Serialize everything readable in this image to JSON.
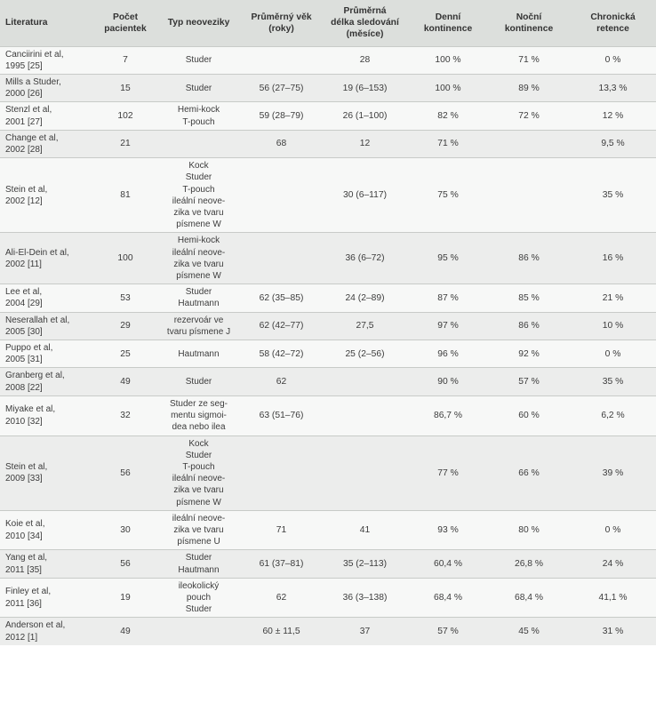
{
  "headers": [
    "Literatura",
    "Počet\npacientek",
    "Typ neoveziky",
    "Průměrný věk\n(roky)",
    "Průměrná\ndélka sledování\n(měsíce)",
    "Denní\nkontinence",
    "Noční\nkontinence",
    "Chronická\nretence"
  ],
  "rows": [
    {
      "lit": "Canciirini et al,\n1995 [25]",
      "n": "7",
      "typ": "Studer",
      "vek": "",
      "sled": "28",
      "den": "100 %",
      "noc": "71 %",
      "ret": "0 %"
    },
    {
      "lit": "Mills a Studer,\n2000 [26]",
      "n": "15",
      "typ": "Studer",
      "vek": "56 (27–75)",
      "sled": "19 (6–153)",
      "den": "100 %",
      "noc": "89 %",
      "ret": "13,3 %"
    },
    {
      "lit": "Stenzl et al,\n2001 [27]",
      "n": "102",
      "typ": "Hemi-kock\nT-pouch",
      "vek": "59 (28–79)",
      "sled": "26 (1–100)",
      "den": "82 %",
      "noc": "72 %",
      "ret": "12 %"
    },
    {
      "lit": "Change et al,\n2002 [28]",
      "n": "21",
      "typ": "",
      "vek": "68",
      "sled": "12",
      "den": "71 %",
      "noc": "",
      "ret": "9,5 %"
    },
    {
      "lit": "Stein et al,\n2002 [12]",
      "n": "81",
      "typ": "Kock\nStuder\nT-pouch\nileální neove-\nzika ve tvaru\npísmene W",
      "vek": "",
      "sled": "30 (6–117)",
      "den": "75 %",
      "noc": "",
      "ret": "35 %"
    },
    {
      "lit": "Ali-El-Dein et al,\n2002 [11]",
      "n": "100",
      "typ": "Hemi-kock\nileální neove-\nzika ve tvaru\npísmene W",
      "vek": "",
      "sled": "36 (6–72)",
      "den": "95 %",
      "noc": "86 %",
      "ret": "16 %"
    },
    {
      "lit": "Lee et al,\n2004 [29]",
      "n": "53",
      "typ": "Studer\nHautmann",
      "vek": "62 (35–85)",
      "sled": "24 (2–89)",
      "den": "87 %",
      "noc": "85 %",
      "ret": "21 %"
    },
    {
      "lit": "Neserallah et al,\n2005 [30]",
      "n": "29",
      "typ": "rezervoár ve\ntvaru písmene J",
      "vek": "62 (42–77)",
      "sled": "27,5",
      "den": "97 %",
      "noc": "86 %",
      "ret": "10 %"
    },
    {
      "lit": "Puppo  et al,\n2005 [31]",
      "n": "25",
      "typ": "Hautmann",
      "vek": "58 (42–72)",
      "sled": "25 (2–56)",
      "den": "96 %",
      "noc": "92 %",
      "ret": "0 %"
    },
    {
      "lit": "Granberg et al,\n2008 [22]",
      "n": "49",
      "typ": "Studer",
      "vek": "62",
      "sled": "",
      "den": "90 %",
      "noc": "57 %",
      "ret": "35 %"
    },
    {
      "lit": "Miyake et al,\n2010 [32]",
      "n": "32",
      "typ": "Studer ze seg-\nmentu sigmoi-\ndea nebo ilea",
      "vek": "63 (51–76)",
      "sled": "",
      "den": "86,7 %",
      "noc": "60 %",
      "ret": "6,2 %"
    },
    {
      "lit": "Stein et al,\n2009 [33]",
      "n": "56",
      "typ": "Kock\nStuder\nT-pouch\nileální neove-\nzika ve tvaru\npísmene W",
      "vek": "",
      "sled": "",
      "den": "77 %",
      "noc": "66 %",
      "ret": "39 %"
    },
    {
      "lit": "Koie et al,\n2010 [34]",
      "n": "30",
      "typ": "ileální neove-\nzika ve tvaru\npísmene U",
      "vek": "71",
      "sled": "41",
      "den": "93 %",
      "noc": "80 %",
      "ret": "0 %"
    },
    {
      "lit": "Yang et al,\n2011 [35]",
      "n": "56",
      "typ": "Studer\nHautmann",
      "vek": "61 (37–81)",
      "sled": "35 (2–113)",
      "den": "60,4 %",
      "noc": "26,8 %",
      "ret": "24 %"
    },
    {
      "lit": "Finley  et al,\n2011 [36]",
      "n": "19",
      "typ": "ileokolický\npouch\nStuder",
      "vek": "62",
      "sled": "36 (3–138)",
      "den": "68,4 %",
      "noc": "68,4 %",
      "ret": "41,1 %"
    },
    {
      "lit": "Anderson et al,\n2012 [1]",
      "n": "49",
      "typ": "",
      "vek": "60 ± 11,5",
      "sled": "37",
      "den": "57 %",
      "noc": "45 %",
      "ret": "31 %"
    }
  ]
}
